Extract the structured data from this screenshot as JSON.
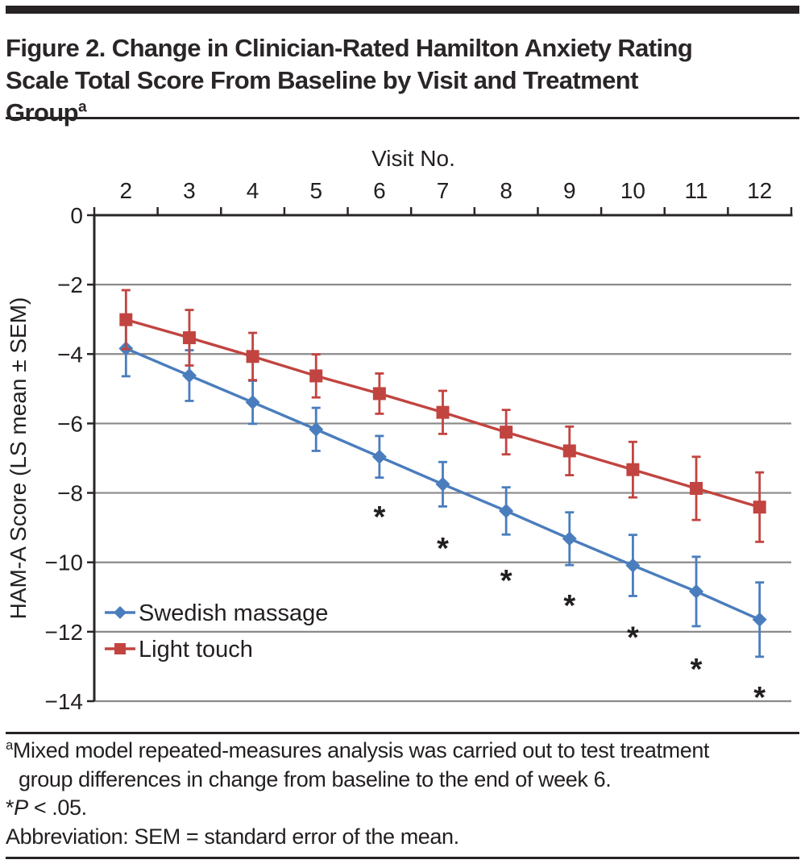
{
  "figure": {
    "title_lines": [
      "Figure 2. Change in Clinician-Rated Hamilton Anxiety Rating",
      "Scale Total Score From Baseline by Visit and Treatment",
      "Group"
    ],
    "title_superscript": "a"
  },
  "chart_data": {
    "type": "line",
    "x": [
      2,
      3,
      4,
      5,
      6,
      7,
      8,
      9,
      10,
      11,
      12
    ],
    "x_axis": {
      "title": "Visit No.",
      "position": "top",
      "tick_labels": [
        "2",
        "3",
        "4",
        "5",
        "6",
        "7",
        "8",
        "9",
        "10",
        "11",
        "12"
      ]
    },
    "y_axis": {
      "title": "HAM-A Score (LS mean ± SEM)",
      "tick_values": [
        0,
        -2,
        -4,
        -6,
        -8,
        -10,
        -12,
        -14
      ],
      "tick_labels": [
        "0",
        "−2",
        "−4",
        "−6",
        "−8",
        "−10",
        "−12",
        "−14"
      ],
      "range": [
        0,
        -14
      ]
    },
    "grid": true,
    "legend_position": "inside-bottom-left",
    "series": [
      {
        "name": "Swedish massage",
        "color": "#4a7dbd",
        "marker": "diamond",
        "values": [
          -3.84,
          -4.62,
          -5.39,
          -6.17,
          -6.96,
          -7.75,
          -8.52,
          -9.32,
          -10.09,
          -10.84,
          -11.65
        ],
        "sem": [
          0.8,
          0.73,
          0.62,
          0.62,
          0.6,
          0.64,
          0.68,
          0.76,
          0.88,
          1.0,
          1.07
        ]
      },
      {
        "name": "Light touch",
        "color": "#c14440",
        "marker": "square",
        "values": [
          -3.01,
          -3.53,
          -4.07,
          -4.63,
          -5.14,
          -5.68,
          -6.25,
          -6.79,
          -7.33,
          -7.87,
          -8.41
        ],
        "sem": [
          0.85,
          0.8,
          0.68,
          0.62,
          0.58,
          0.62,
          0.64,
          0.7,
          0.8,
          0.91,
          1.0
        ]
      }
    ],
    "significance_markers": {
      "symbol": "*",
      "x": [
        6,
        7,
        8,
        9,
        10,
        11,
        12
      ],
      "y": [
        -8.5,
        -9.4,
        -10.33,
        -11.05,
        -11.97,
        -12.88,
        -13.7
      ]
    }
  },
  "footnotes": {
    "a_sup": "a",
    "a_line1": "Mixed model repeated-measures analysis was carried out to test treatment",
    "a_line2": "group differences in change from baseline to the end of week 6.",
    "sig_star": "*",
    "sig_p": "P",
    "sig_rest": " < .05.",
    "abbrev": "Abbreviation: SEM = standard error of the mean."
  }
}
